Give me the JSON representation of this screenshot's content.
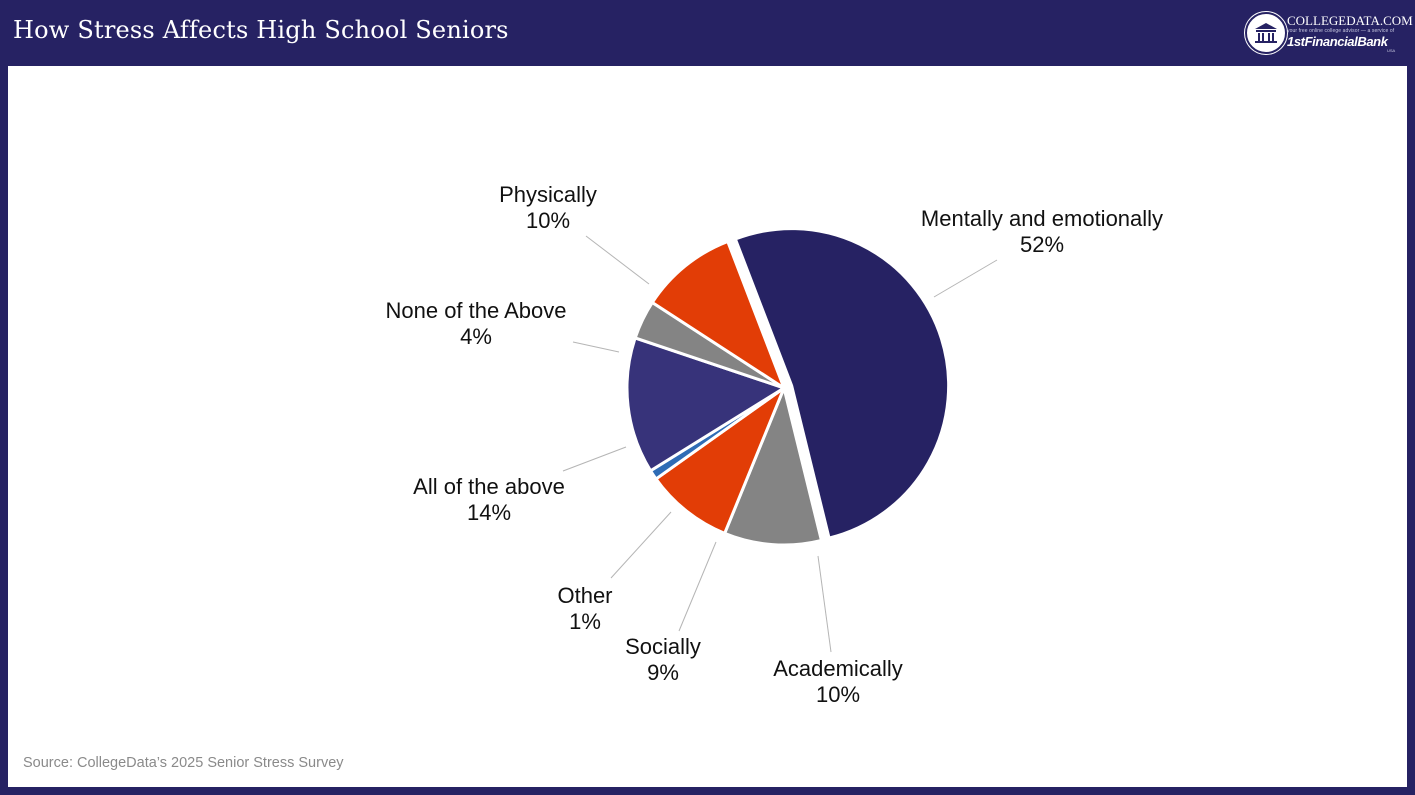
{
  "header": {
    "title": "How Stress Affects High School Seniors",
    "logo": {
      "name": "COLLEGEDATA.COM",
      "tagline": "your free online college advisor — a service of",
      "bank": "1stFinancialBank",
      "bank_suffix": "USA"
    }
  },
  "colors": {
    "navy": "#262263",
    "indigo": "#37337a",
    "orange": "#e23d06",
    "gray": "#848484",
    "blue": "#2f6cb5",
    "white": "#ffffff"
  },
  "chart_data": {
    "type": "pie",
    "title": "",
    "start_angle_deg": -21,
    "direction": "clockwise",
    "slices": [
      {
        "label": "Mentally and emotionally",
        "value": 52,
        "value_label": "52%",
        "color": "#262263",
        "exploded": true
      },
      {
        "label": "Academically",
        "value": 10,
        "value_label": "10%",
        "color": "#848484",
        "exploded": false
      },
      {
        "label": "Socially",
        "value": 9,
        "value_label": "9%",
        "color": "#e23d06",
        "exploded": false
      },
      {
        "label": "Other",
        "value": 1,
        "value_label": "1%",
        "color": "#2f6cb5",
        "exploded": false
      },
      {
        "label": "All of the above",
        "value": 14,
        "value_label": "14%",
        "color": "#37337a",
        "exploded": false
      },
      {
        "label": "None of the Above",
        "value": 4,
        "value_label": "4%",
        "color": "#848484",
        "exploded": false
      },
      {
        "label": "Physically",
        "value": 10,
        "value_label": "10%",
        "color": "#e23d06",
        "exploded": false
      }
    ]
  },
  "footer": {
    "source": "Source: CollegeData’s 2025 Senior Stress Survey"
  }
}
